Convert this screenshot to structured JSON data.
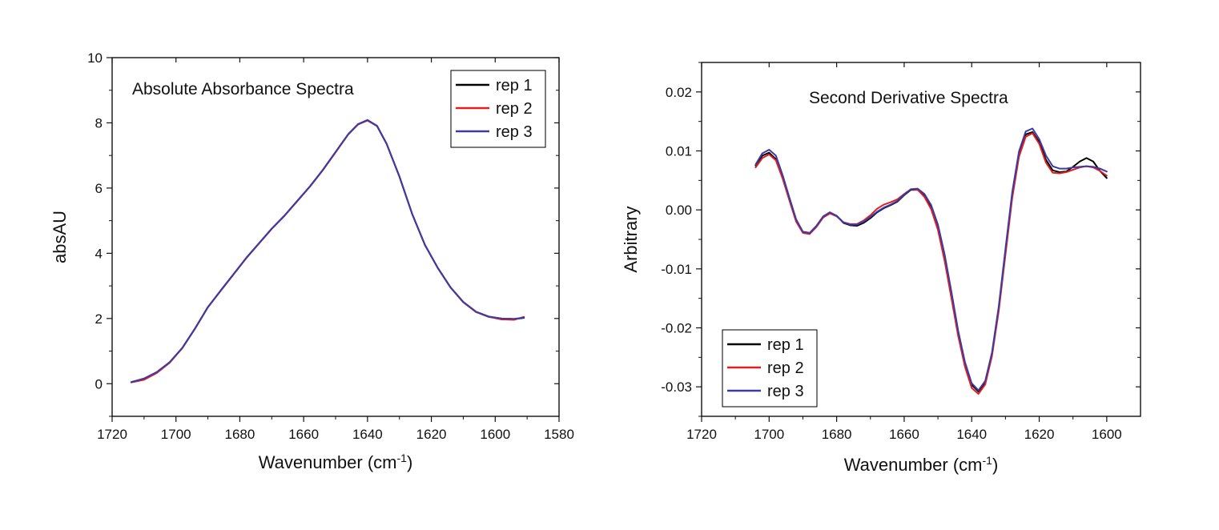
{
  "chart_data": [
    {
      "type": "line",
      "title": "Absolute Absorbance Spectra",
      "xlabel": "Wavenumber (cm",
      "xlabel_sup": "-1",
      "xlabel_end": ")",
      "ylabel": "absAU",
      "xlim": [
        1720,
        1580
      ],
      "ylim": [
        -1,
        10
      ],
      "x_ticks": [
        1720,
        1700,
        1680,
        1660,
        1640,
        1620,
        1600,
        1580
      ],
      "y_ticks": [
        0,
        2,
        4,
        6,
        8,
        10
      ],
      "x_tick_labels": [
        "1720",
        "1700",
        "1680",
        "1660",
        "1640",
        "1620",
        "1600",
        "1580"
      ],
      "y_tick_labels": [
        "0",
        "2",
        "4",
        "6",
        "8",
        "10"
      ],
      "legend_position": "top-right",
      "grid": false,
      "series": [
        {
          "name": "rep 1",
          "color": "#000000",
          "x": [
            1714,
            1710,
            1706,
            1702,
            1698,
            1694,
            1690,
            1686,
            1682,
            1678,
            1674,
            1670,
            1666,
            1662,
            1658,
            1654,
            1650,
            1646,
            1643,
            1640,
            1637,
            1634,
            1630,
            1626,
            1622,
            1618,
            1614,
            1610,
            1606,
            1602,
            1598,
            1594,
            1591
          ],
          "y": [
            0.05,
            0.15,
            0.35,
            0.65,
            1.1,
            1.7,
            2.35,
            2.85,
            3.35,
            3.85,
            4.3,
            4.75,
            5.15,
            5.6,
            6.05,
            6.55,
            7.1,
            7.65,
            7.95,
            8.08,
            7.9,
            7.35,
            6.35,
            5.2,
            4.25,
            3.55,
            2.95,
            2.5,
            2.2,
            2.05,
            2.0,
            1.98,
            2.02
          ]
        },
        {
          "name": "rep 2",
          "color": "#e02020",
          "x": [
            1714,
            1710,
            1706,
            1702,
            1698,
            1694,
            1690,
            1686,
            1682,
            1678,
            1674,
            1670,
            1666,
            1662,
            1658,
            1654,
            1650,
            1646,
            1643,
            1640,
            1637,
            1634,
            1630,
            1626,
            1622,
            1618,
            1614,
            1610,
            1606,
            1602,
            1598,
            1594,
            1591
          ],
          "y": [
            0.04,
            0.12,
            0.33,
            0.64,
            1.09,
            1.69,
            2.34,
            2.85,
            3.35,
            3.85,
            4.3,
            4.75,
            5.15,
            5.6,
            6.05,
            6.55,
            7.1,
            7.65,
            7.95,
            8.07,
            7.9,
            7.35,
            6.35,
            5.2,
            4.25,
            3.55,
            2.95,
            2.5,
            2.2,
            2.05,
            1.97,
            1.96,
            2.05
          ]
        },
        {
          "name": "rep 3",
          "color": "#3a3aa8",
          "x": [
            1714,
            1710,
            1706,
            1702,
            1698,
            1694,
            1690,
            1686,
            1682,
            1678,
            1674,
            1670,
            1666,
            1662,
            1658,
            1654,
            1650,
            1646,
            1643,
            1640,
            1637,
            1634,
            1630,
            1626,
            1622,
            1618,
            1614,
            1610,
            1606,
            1602,
            1598,
            1594,
            1591
          ],
          "y": [
            0.05,
            0.16,
            0.36,
            0.66,
            1.1,
            1.7,
            2.35,
            2.86,
            3.36,
            3.86,
            4.31,
            4.76,
            5.16,
            5.61,
            6.06,
            6.56,
            7.11,
            7.66,
            7.96,
            8.09,
            7.91,
            7.36,
            6.36,
            5.21,
            4.26,
            3.56,
            2.96,
            2.51,
            2.21,
            2.06,
            2.0,
            1.99,
            2.03
          ]
        }
      ]
    },
    {
      "type": "line",
      "title": "Second Derivative Spectra",
      "xlabel": "Wavenumber (cm",
      "xlabel_sup": "-1",
      "xlabel_end": ")",
      "ylabel": "Arbitrary",
      "xlim": [
        1720,
        1590
      ],
      "ylim": [
        -0.035,
        0.025
      ],
      "x_ticks": [
        1720,
        1700,
        1680,
        1660,
        1640,
        1620,
        1600
      ],
      "y_ticks": [
        -0.03,
        -0.02,
        -0.01,
        0.0,
        0.01,
        0.02
      ],
      "x_tick_labels": [
        "1720",
        "1700",
        "1680",
        "1660",
        "1640",
        "1620",
        "1600"
      ],
      "y_tick_labels": [
        "-0.03",
        "-0.02",
        "-0.01",
        "0.00",
        "0.01",
        "0.02"
      ],
      "legend_position": "bottom-left",
      "grid": false,
      "series": [
        {
          "name": "rep 1",
          "color": "#000000",
          "x": [
            1704,
            1702,
            1700,
            1698,
            1696,
            1694,
            1692,
            1690,
            1688,
            1686,
            1684,
            1682,
            1680,
            1678,
            1676,
            1674,
            1672,
            1670,
            1668,
            1666,
            1664,
            1662,
            1660,
            1658,
            1656,
            1654,
            1652,
            1650,
            1648,
            1646,
            1644,
            1642,
            1640,
            1638,
            1636,
            1634,
            1632,
            1630,
            1628,
            1626,
            1624,
            1622,
            1620,
            1618,
            1616,
            1614,
            1612,
            1610,
            1608,
            1606,
            1604,
            1602,
            1600
          ],
          "y": [
            0.0075,
            0.0092,
            0.0097,
            0.0086,
            0.0055,
            0.0018,
            -0.0018,
            -0.0038,
            -0.004,
            -0.0028,
            -0.0012,
            -0.0005,
            -0.001,
            -0.0022,
            -0.0026,
            -0.0027,
            -0.0022,
            -0.0014,
            -0.0004,
            0.0003,
            0.0008,
            0.0014,
            0.0025,
            0.0034,
            0.0034,
            0.0024,
            0.0004,
            -0.003,
            -0.0082,
            -0.0145,
            -0.021,
            -0.0262,
            -0.0297,
            -0.0308,
            -0.0292,
            -0.0245,
            -0.0168,
            -0.0072,
            0.0025,
            0.0095,
            0.0128,
            0.0132,
            0.0115,
            0.0085,
            0.0067,
            0.0064,
            0.0065,
            0.0073,
            0.0082,
            0.0088,
            0.0082,
            0.0066,
            0.0054
          ]
        },
        {
          "name": "rep 2",
          "color": "#e02020",
          "x": [
            1704,
            1702,
            1700,
            1698,
            1696,
            1694,
            1692,
            1690,
            1688,
            1686,
            1684,
            1682,
            1680,
            1678,
            1676,
            1674,
            1672,
            1670,
            1668,
            1666,
            1664,
            1662,
            1660,
            1658,
            1656,
            1654,
            1652,
            1650,
            1648,
            1646,
            1644,
            1642,
            1640,
            1638,
            1636,
            1634,
            1632,
            1630,
            1628,
            1626,
            1624,
            1622,
            1620,
            1618,
            1616,
            1614,
            1612,
            1610,
            1608,
            1606,
            1604,
            1602,
            1600
          ],
          "y": [
            0.0072,
            0.0088,
            0.0094,
            0.0084,
            0.0053,
            0.0016,
            -0.002,
            -0.0039,
            -0.0041,
            -0.0029,
            -0.0013,
            -0.0006,
            -0.0011,
            -0.0021,
            -0.0024,
            -0.0024,
            -0.0018,
            -0.0009,
            0.0002,
            0.0009,
            0.0013,
            0.0018,
            0.0027,
            0.0035,
            0.0034,
            0.0022,
            0.0001,
            -0.0034,
            -0.0087,
            -0.015,
            -0.0214,
            -0.0266,
            -0.0302,
            -0.0312,
            -0.0296,
            -0.0248,
            -0.0172,
            -0.0076,
            0.002,
            0.009,
            0.0124,
            0.013,
            0.0112,
            0.008,
            0.0063,
            0.0062,
            0.0064,
            0.0068,
            0.0072,
            0.0074,
            0.0072,
            0.0066,
            0.0058
          ]
        },
        {
          "name": "rep 3",
          "color": "#3a3aa8",
          "x": [
            1704,
            1702,
            1700,
            1698,
            1696,
            1694,
            1692,
            1690,
            1688,
            1686,
            1684,
            1682,
            1680,
            1678,
            1676,
            1674,
            1672,
            1670,
            1668,
            1666,
            1664,
            1662,
            1660,
            1658,
            1656,
            1654,
            1652,
            1650,
            1648,
            1646,
            1644,
            1642,
            1640,
            1638,
            1636,
            1634,
            1632,
            1630,
            1628,
            1626,
            1624,
            1622,
            1620,
            1618,
            1616,
            1614,
            1612,
            1610,
            1608,
            1606,
            1604,
            1602,
            1600
          ],
          "y": [
            0.0077,
            0.0096,
            0.0102,
            0.0092,
            0.0059,
            0.0021,
            -0.0016,
            -0.0037,
            -0.0039,
            -0.0027,
            -0.0011,
            -0.0004,
            -0.001,
            -0.0021,
            -0.0025,
            -0.0025,
            -0.002,
            -0.0012,
            -0.0003,
            0.0004,
            0.0009,
            0.0015,
            0.0026,
            0.0035,
            0.0036,
            0.0027,
            0.0008,
            -0.0025,
            -0.0076,
            -0.0139,
            -0.0205,
            -0.0258,
            -0.0294,
            -0.0306,
            -0.029,
            -0.0242,
            -0.0164,
            -0.0066,
            0.003,
            0.0099,
            0.0133,
            0.0138,
            0.012,
            0.0092,
            0.0074,
            0.007,
            0.007,
            0.0072,
            0.0073,
            0.0074,
            0.0073,
            0.007,
            0.0065
          ]
        }
      ]
    }
  ]
}
